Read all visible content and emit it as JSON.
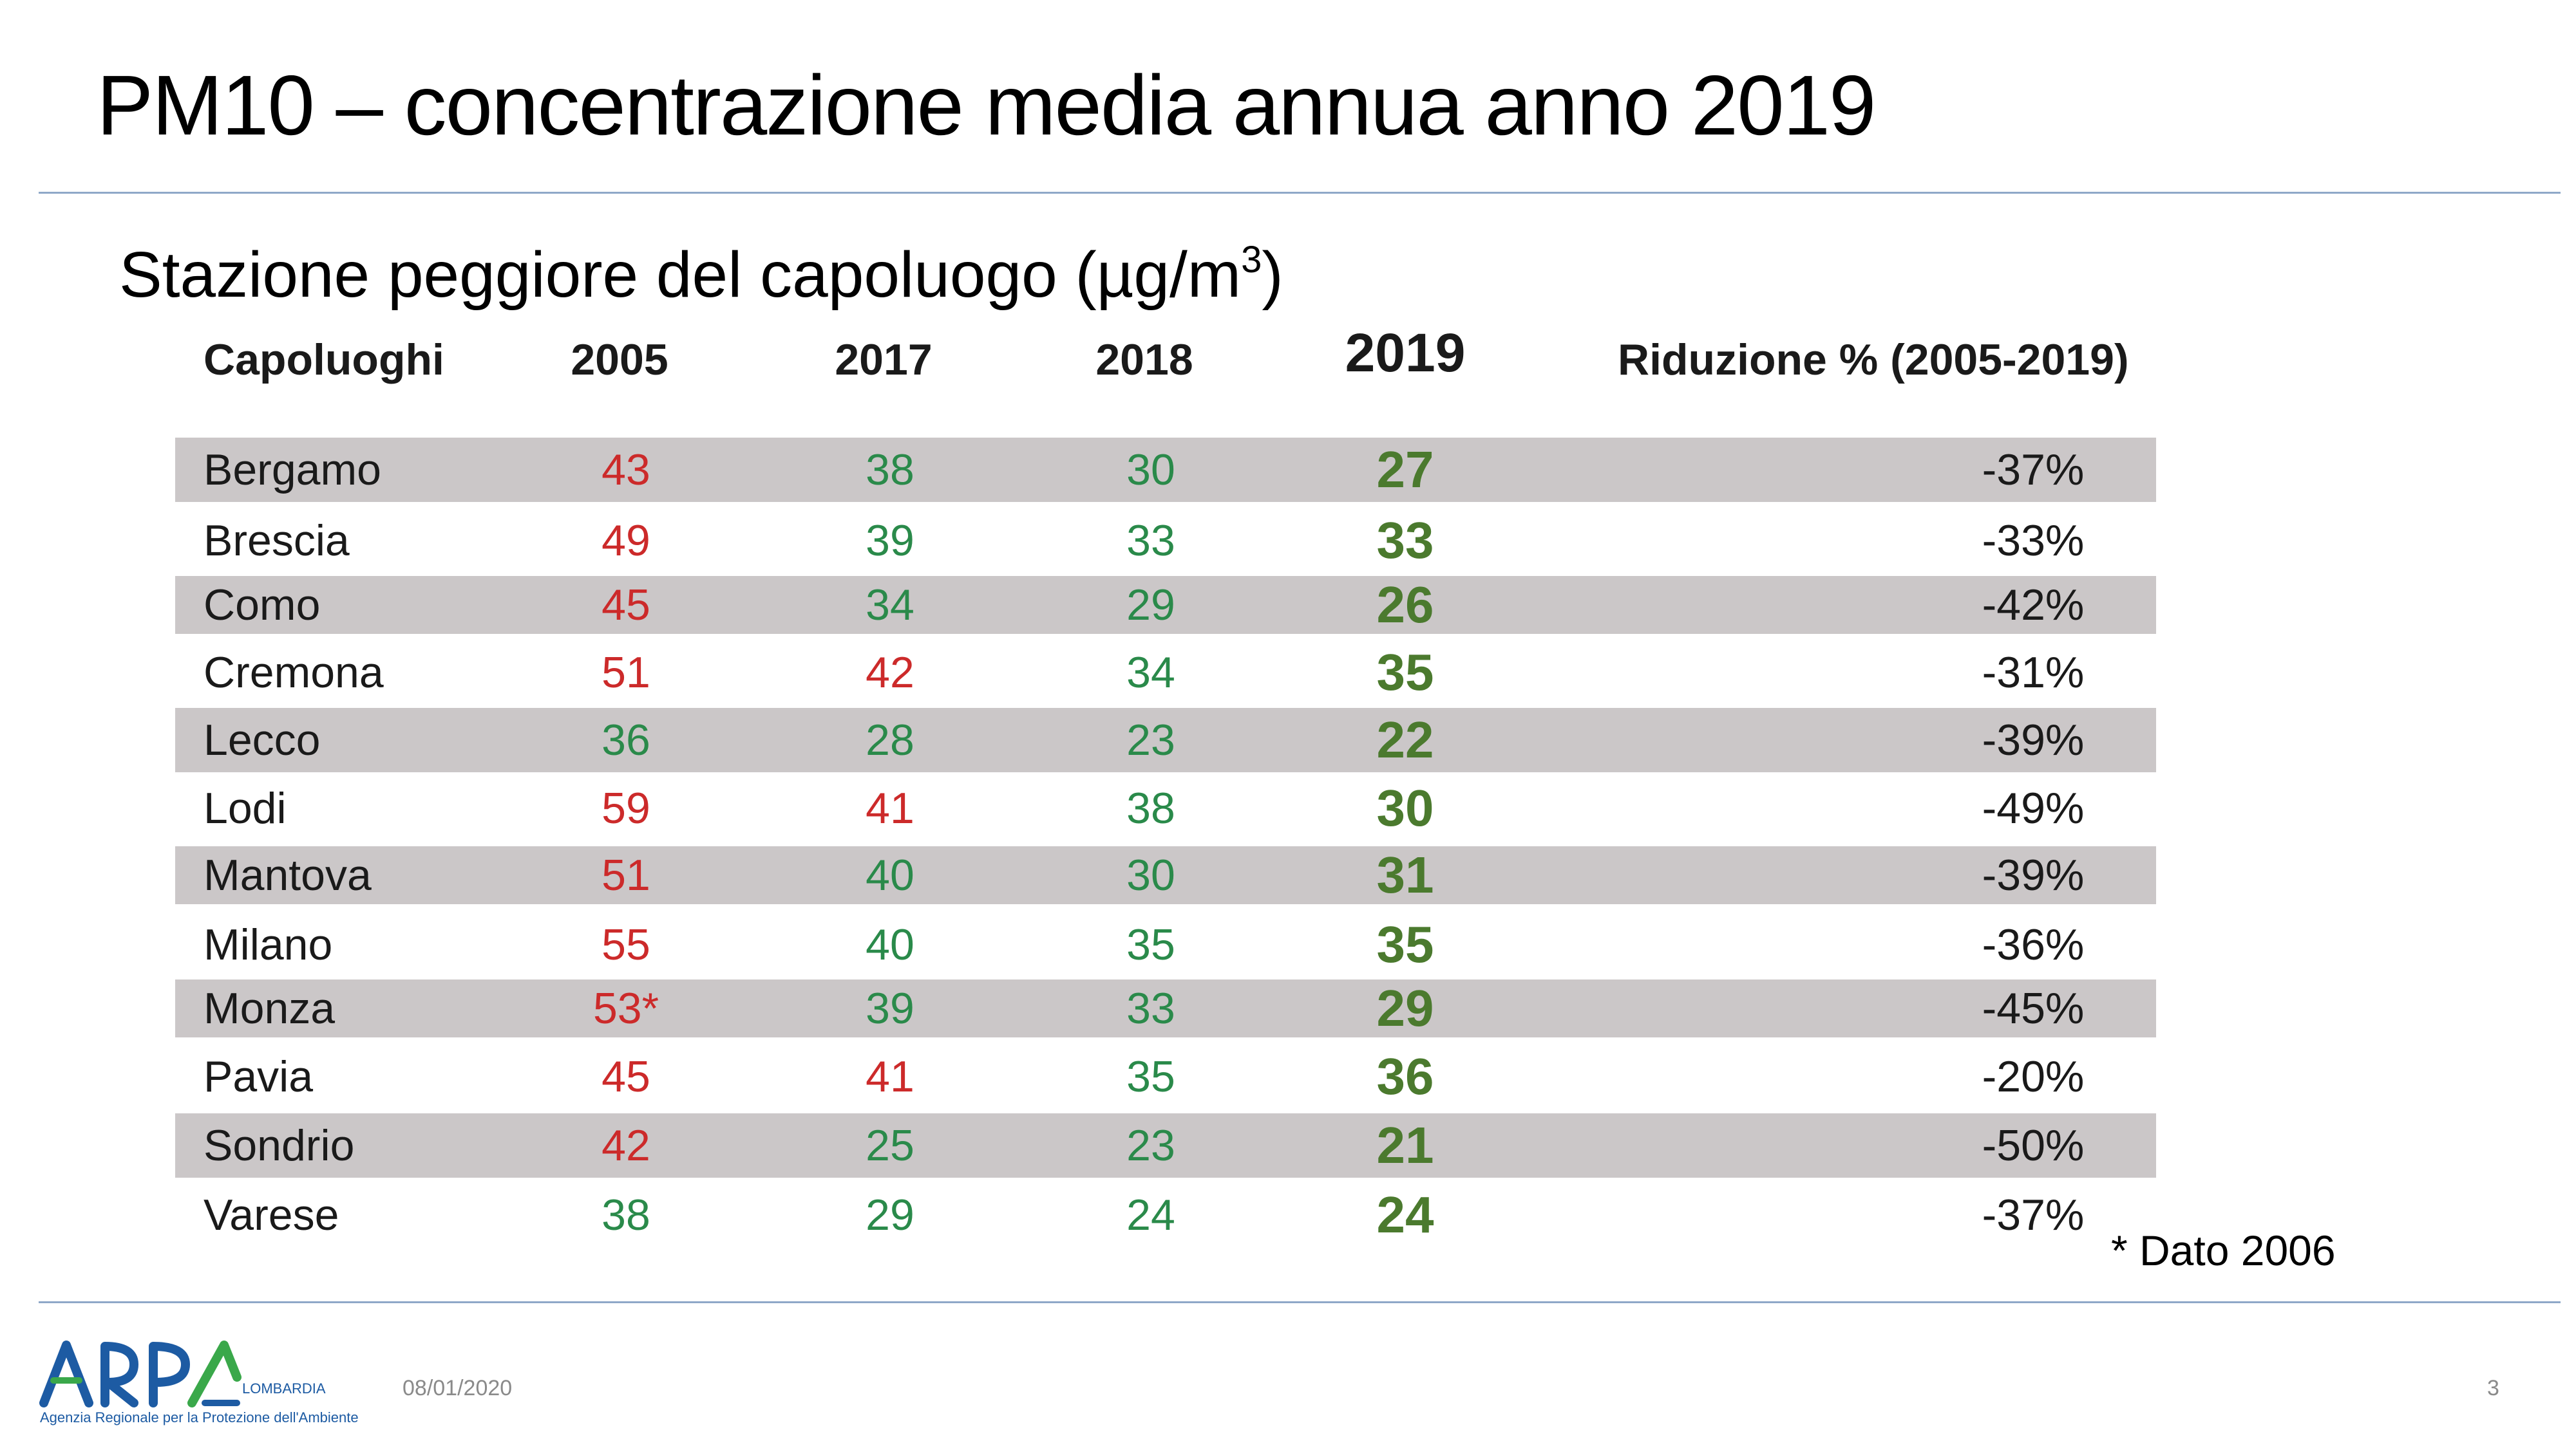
{
  "slide": {
    "title": "PM10 – concentrazione media annua anno 2019",
    "subtitle_main": "Stazione peggiore del capoluogo (µg/m",
    "subtitle_sup": "3",
    "subtitle_end": ")",
    "footnote": "* Dato 2006",
    "date": "08/01/2020",
    "page_number": "3"
  },
  "table": {
    "headers": {
      "city": "Capoluoghi",
      "y2005": "2005",
      "y2017": "2017",
      "y2018": "2018",
      "y2019": "2019",
      "reduction": "Riduzione % (2005-2019)"
    },
    "rows": [
      {
        "city": "Bergamo",
        "y2005": "43",
        "y2017": "38",
        "y2018": "30",
        "y2019": "27",
        "reduction": "-37%"
      },
      {
        "city": "Brescia",
        "y2005": "49",
        "y2017": "39",
        "y2018": "33",
        "y2019": "33",
        "reduction": "-33%"
      },
      {
        "city": "Como",
        "y2005": "45",
        "y2017": "34",
        "y2018": "29",
        "y2019": "26",
        "reduction": "-42%"
      },
      {
        "city": "Cremona",
        "y2005": "51",
        "y2017": "42",
        "y2018": "34",
        "y2019": "35",
        "reduction": "-31%"
      },
      {
        "city": "Lecco",
        "y2005": "36",
        "y2017": "28",
        "y2018": "23",
        "y2019": "22",
        "reduction": "-39%"
      },
      {
        "city": "Lodi",
        "y2005": "59",
        "y2017": "41",
        "y2018": "38",
        "y2019": "30",
        "reduction": "-49%"
      },
      {
        "city": "Mantova",
        "y2005": "51",
        "y2017": "40",
        "y2018": "30",
        "y2019": "31",
        "reduction": "-39%"
      },
      {
        "city": "Milano",
        "y2005": "55",
        "y2017": "40",
        "y2018": "35",
        "y2019": "35",
        "reduction": "-36%"
      },
      {
        "city": "Monza",
        "y2005": "53*",
        "y2017": "39",
        "y2018": "33",
        "y2019": "29",
        "reduction": "-45%"
      },
      {
        "city": "Pavia",
        "y2005": "45",
        "y2017": "41",
        "y2018": "35",
        "y2019": "36",
        "reduction": "-20%"
      },
      {
        "city": "Sondrio",
        "y2005": "42",
        "y2017": "25",
        "y2018": "23",
        "y2019": "21",
        "reduction": "-50%"
      },
      {
        "city": "Varese",
        "y2005": "38",
        "y2017": "29",
        "y2018": "24",
        "y2019": "24",
        "reduction": "-37%"
      }
    ]
  },
  "logo": {
    "text": "ARPA",
    "region": "LOMBARDIA",
    "tagline": "Agenzia Regionale per la Protezione dell'Ambiente"
  },
  "colors": {
    "above_limit": "#cc2a2a",
    "below_limit": "#2a8a4a",
    "year_2019": "#4b7a2e",
    "shaded_row": "#cbc7c8",
    "divider": "#8fa8c8",
    "logo_blue": "#1d5ba3",
    "logo_green": "#3aa84a"
  }
}
